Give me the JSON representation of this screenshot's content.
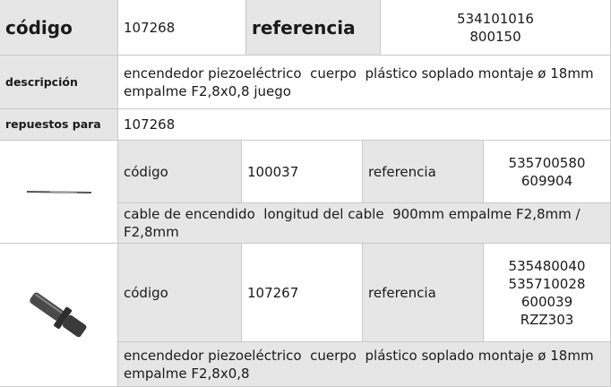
{
  "header": {
    "codigo_label": "código",
    "codigo": "107268",
    "referencia_label": "referencia",
    "referencias": [
      "534101016",
      "800150"
    ]
  },
  "descripcion": {
    "label": "descripción",
    "text": "encendedor piezoeléctrico  cuerpo  plástico soplado montaje ø 18mm empalme F2,8x0,8 juego"
  },
  "repuestos": {
    "label": "repuestos para",
    "value": "107268"
  },
  "parts": [
    {
      "codigo_label": "código",
      "codigo": "100037",
      "referencia_label": "referencia",
      "referencias": [
        "535700580",
        "609904"
      ],
      "description": "cable de encendido  longitud del cable  900mm empalme F2,8mm / F2,8mm"
    },
    {
      "codigo_label": "código",
      "codigo": "107267",
      "referencia_label": "referencia",
      "referencias": [
        "535480040",
        "535710028",
        "600039",
        "RZZ303"
      ],
      "description": "encendedor piezoeléctrico  cuerpo  plástico soplado montaje ø 18mm empalme F2,8x0,8"
    }
  ]
}
